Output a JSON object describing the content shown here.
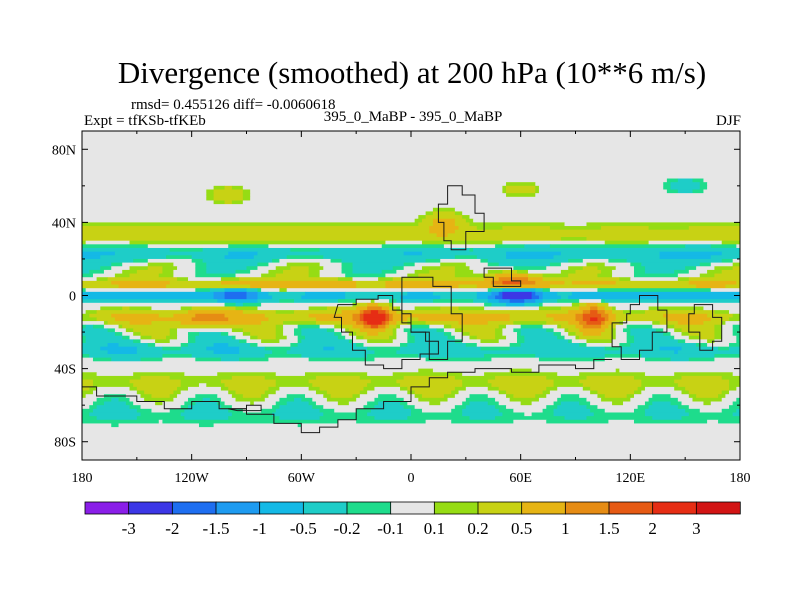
{
  "chart_data": {
    "type": "heatmap",
    "title": "Divergence (smoothed) at 200 hPa (10**6 m/s)",
    "stats": "rmsd= 0.455126 diff= -0.0060618",
    "experiment": "Expt = tfKSb-tfKEb",
    "case": "395_0_MaBP - 395_0_MaBP",
    "season": "DJF",
    "x_ticks": [
      "180",
      "120W",
      "60W",
      "0",
      "60E",
      "120E",
      "180"
    ],
    "x_tick_values": [
      -180,
      -120,
      -60,
      0,
      60,
      120,
      180
    ],
    "y_ticks": [
      "80N",
      "40N",
      "0",
      "40S",
      "80S"
    ],
    "y_tick_values": [
      80,
      40,
      0,
      -40,
      -80
    ],
    "xlim": [
      -180,
      180
    ],
    "ylim": [
      -90,
      90
    ],
    "colorbar_labels": [
      "-3",
      "-2",
      "-1.5",
      "-1",
      "-0.5",
      "-0.2",
      "-0.1",
      "0.1",
      "0.2",
      "0.5",
      "1",
      "1.5",
      "2",
      "3"
    ],
    "colorbar_colors": [
      "#8a1ee8",
      "#3c37e6",
      "#1e6ef0",
      "#1e9bf0",
      "#14b9e6",
      "#1ecdc8",
      "#1edc8c",
      "#e6e6e6",
      "#96dc14",
      "#c8d214",
      "#e6b414",
      "#e68c14",
      "#e65a14",
      "#e62d14",
      "#d21414"
    ],
    "features": {
      "zonal_bands": [
        {
          "lat": 33,
          "value": 0.35,
          "amplitude": 0.25,
          "width_deg": 6
        },
        {
          "lat": 23,
          "value": -0.45,
          "amplitude": 0.3,
          "width_deg": 5
        },
        {
          "lat": 6,
          "value": 0.6,
          "amplitude": 0.4,
          "width_deg": 3
        },
        {
          "lat": 0,
          "value": -0.7,
          "amplitude": 0.5,
          "width_deg": 3
        },
        {
          "lat": -12,
          "value": 0.55,
          "amplitude": 0.35,
          "width_deg": 4
        },
        {
          "lat": -30,
          "value": -0.35,
          "amplitude": 0.3,
          "width_deg": 5
        },
        {
          "lat": -48,
          "value": 0.25,
          "amplitude": 0.25,
          "width_deg": 6
        },
        {
          "lat": -65,
          "value": -0.2,
          "amplitude": 0.2,
          "width_deg": 6
        }
      ],
      "blobs": [
        {
          "lon": -20,
          "lat": -12,
          "value": 2.4,
          "r_lon": 8,
          "r_lat": 6
        },
        {
          "lon": 58,
          "lat": 0,
          "value": -2.4,
          "r_lon": 12,
          "r_lat": 4
        },
        {
          "lon": 55,
          "lat": 8,
          "value": 1.3,
          "r_lon": 14,
          "r_lat": 5
        },
        {
          "lon": 100,
          "lat": -12,
          "value": 1.4,
          "r_lon": 8,
          "r_lat": 8
        },
        {
          "lon": -95,
          "lat": 0,
          "value": -1.2,
          "r_lon": 12,
          "r_lat": 4
        },
        {
          "lon": 18,
          "lat": 40,
          "value": 0.6,
          "r_lon": 10,
          "r_lat": 6
        },
        {
          "lon": -100,
          "lat": 55,
          "value": 0.4,
          "r_lon": 10,
          "r_lat": 5
        },
        {
          "lon": 60,
          "lat": 58,
          "value": 0.35,
          "r_lon": 10,
          "r_lat": 4
        },
        {
          "lon": 150,
          "lat": 60,
          "value": -0.4,
          "r_lon": 10,
          "r_lat": 4
        },
        {
          "lon": -115,
          "lat": -13,
          "value": 0.9,
          "r_lon": 14,
          "r_lat": 5
        }
      ]
    }
  }
}
